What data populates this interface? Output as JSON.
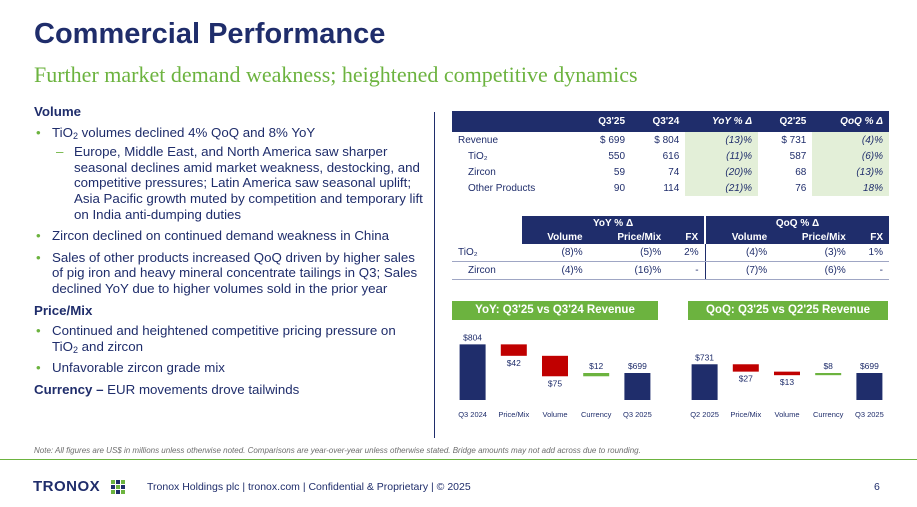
{
  "title": "Commercial Performance",
  "subtitle": "Further market demand weakness; heightened competitive dynamics",
  "volume": {
    "heading": "Volume",
    "b1_pre": "TiO",
    "b1_sub": "2",
    "b1_post": " volumes declined 4% QoQ and 8% YoY",
    "b1_sub1": "Europe, Middle East, and North America saw sharper seasonal declines amid market weakness, destocking, and competitive pressures; Latin America saw seasonal uplift; Asia Pacific growth muted by competition and temporary lift on India anti-dumping duties",
    "b2": "Zircon declined on continued demand weakness in China",
    "b3": "Sales of other products increased QoQ driven by higher sales of pig iron and heavy mineral concentrate tailings in Q3; Sales declined YoY due to higher volumes sold in the prior year"
  },
  "price_mix": {
    "heading": "Price/Mix",
    "b1_pre": "Continued and heightened competitive pricing pressure on TiO",
    "b1_sub": "2",
    "b1_post": " and zircon",
    "b2": "Unfavorable zircon grade mix"
  },
  "currency": {
    "heading": "Currency –",
    "text": " EUR movements drove tailwinds"
  },
  "table1": {
    "headers": [
      "",
      "Q3'25",
      "Q3'24",
      "YoY % Δ",
      "Q2'25",
      "QoQ % Δ"
    ],
    "rows": [
      {
        "label": "Revenue",
        "q325": "$ 699",
        "q324": "$ 804",
        "yoy": "(13)%",
        "q225": "$ 731",
        "qoq": "(4)%"
      },
      {
        "label": "TiO₂",
        "q325": "550",
        "q324": "616",
        "yoy": "(11)%",
        "q225": "587",
        "qoq": "(6)%"
      },
      {
        "label": "Zircon",
        "q325": "59",
        "q324": "74",
        "yoy": "(20)%",
        "q225": "68",
        "qoq": "(13)%"
      },
      {
        "label": "Other Products",
        "q325": "90",
        "q324": "114",
        "yoy": "(21)%",
        "q225": "76",
        "qoq": "18%"
      }
    ]
  },
  "table2": {
    "group1": "YoY % Δ",
    "group2": "QoQ % Δ",
    "subheaders": [
      "Volume",
      "Price/Mix",
      "FX",
      "Volume",
      "Price/Mix",
      "FX"
    ],
    "rows": [
      {
        "label": "TiO₂",
        "v1": "(8)%",
        "p1": "(5)%",
        "f1": "2%",
        "v2": "(4)%",
        "p2": "(3)%",
        "f2": "1%"
      },
      {
        "label": "Zircon",
        "v1": "(4)%",
        "p1": "(16)%",
        "f1": "-",
        "v2": "(7)%",
        "p2": "(6)%",
        "f2": "-"
      }
    ]
  },
  "chart_data": [
    {
      "type": "bar",
      "title": "YoY: Q3'25 vs Q3'24 Revenue",
      "categories": [
        "Q3 2024",
        "Price/Mix",
        "Volume",
        "Currency",
        "Q3 2025"
      ],
      "labels": [
        "$804",
        "$42",
        "$75",
        "$12",
        "$699"
      ],
      "values": [
        804,
        -42,
        -75,
        12,
        699
      ],
      "kinds": [
        "total",
        "delta",
        "delta",
        "delta",
        "total"
      ]
    },
    {
      "type": "bar",
      "title": "QoQ: Q3'25 vs Q2'25 Revenue",
      "categories": [
        "Q2 2025",
        "Price/Mix",
        "Volume",
        "Currency",
        "Q3 2025"
      ],
      "labels": [
        "$731",
        "$27",
        "$13",
        "$8",
        "$699"
      ],
      "values": [
        731,
        -27,
        -13,
        8,
        699
      ],
      "kinds": [
        "total",
        "delta",
        "delta",
        "delta",
        "total"
      ]
    }
  ],
  "colors": {
    "navy": "#1f2d6b",
    "green": "#6cb33f",
    "red": "#c00000",
    "highlight": "#e3efd8"
  },
  "footnote": "Note: All figures are US$ in millions unless otherwise noted. Comparisons are year-over-year unless otherwise stated. Bridge amounts may not add across due to rounding.",
  "logo_text": "TRONOX",
  "footer": "Tronox Holdings plc  |  tronox.com  |  Confidential & Proprietary  |  © 2025",
  "page_number": "6"
}
